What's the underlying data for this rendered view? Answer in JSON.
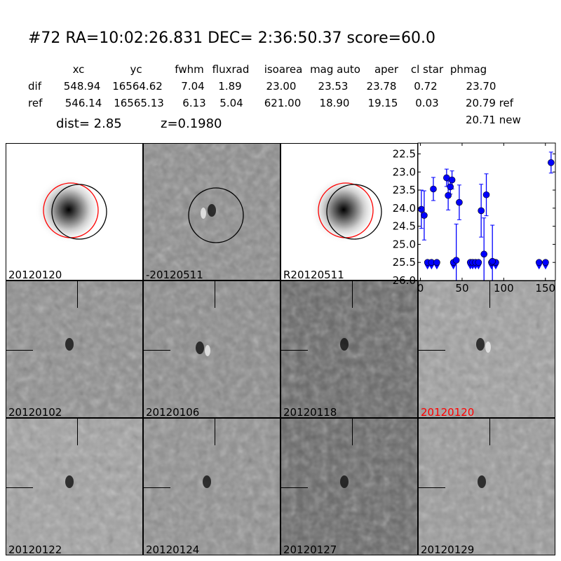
{
  "header": {
    "title": "#72   RA=10:02:26.831 DEC= 2:36:50.37      score=60.0",
    "columns": [
      "xc",
      "yc",
      "fwhm",
      "fluxrad",
      "isoarea",
      "mag auto",
      "aper",
      "cl star",
      "phmag"
    ],
    "rows": [
      {
        "label": "dif",
        "values": [
          "548.94",
          "16564.62",
          "7.04",
          "1.89",
          "23.00",
          "23.53",
          "23.78",
          "0.72",
          "23.70"
        ]
      },
      {
        "label": "ref",
        "values": [
          "546.14",
          "16565.13",
          "6.13",
          "5.04",
          "621.00",
          "18.90",
          "19.15",
          "0.03",
          "20.79 ref"
        ]
      }
    ],
    "extra_phmag": "20.71 new",
    "dist": "dist=  2.85",
    "z": "z=0.1980"
  },
  "panels": [
    {
      "label": "20120120",
      "label_color": "#000000",
      "bg": "#ffffff",
      "type": "galaxy"
    },
    {
      "label": "-20120511",
      "label_color": "#000000",
      "bg": "#8c8c8c",
      "type": "diff"
    },
    {
      "label": "R20120511",
      "label_color": "#000000",
      "bg": "#ffffff",
      "type": "galaxy"
    },
    {
      "label": "20120102",
      "label_color": "#000000",
      "bg": "#8e8e8e",
      "type": "epoch"
    },
    {
      "label": "20120106",
      "label_color": "#000000",
      "bg": "#8a8a8a",
      "type": "epoch"
    },
    {
      "label": "20120118",
      "label_color": "#000000",
      "bg": "#666666",
      "type": "epoch"
    },
    {
      "label": "20120120",
      "label_color": "#ff0000",
      "bg": "#a0a0a0",
      "type": "epoch"
    },
    {
      "label": "20120122",
      "label_color": "#000000",
      "bg": "#a2a2a2",
      "type": "epoch"
    },
    {
      "label": "20120124",
      "label_color": "#000000",
      "bg": "#909090",
      "type": "epoch"
    },
    {
      "label": "20120127",
      "label_color": "#000000",
      "bg": "#666666",
      "type": "epoch"
    },
    {
      "label": "20120129",
      "label_color": "#000000",
      "bg": "#9a9a9a",
      "type": "epoch"
    }
  ],
  "colors": {
    "circle_ref": "#ff0000",
    "circle_dif": "#000000",
    "points": "#0000ff"
  },
  "chart_data": {
    "type": "scatter",
    "xlim": [
      -3,
      162
    ],
    "ylim": [
      26.0,
      22.2
    ],
    "y_inverted": true,
    "xticks": [
      "0",
      "50",
      "100",
      "150"
    ],
    "yticks": [
      "22.5",
      "23.0",
      "23.5",
      "24.0",
      "24.5",
      "25.0",
      "25.5",
      "26.0"
    ],
    "detections": [
      {
        "x": 1.1,
        "y": 24.03,
        "err": 0.53
      },
      {
        "x": 4.5,
        "y": 24.2,
        "err": 0.68
      },
      {
        "x": 15.5,
        "y": 23.47,
        "err": 0.32
      },
      {
        "x": 31.4,
        "y": 23.16,
        "err": 0.24
      },
      {
        "x": 33.3,
        "y": 23.65,
        "err": 0.4
      },
      {
        "x": 35.9,
        "y": 23.41,
        "err": 0.2
      },
      {
        "x": 37.9,
        "y": 23.22,
        "err": 0.25
      },
      {
        "x": 43.0,
        "y": 25.44,
        "err": 1.0
      },
      {
        "x": 46.6,
        "y": 23.84,
        "err": 0.48
      },
      {
        "x": 72.9,
        "y": 24.07,
        "err": 0.73
      },
      {
        "x": 76.3,
        "y": 25.27,
        "err": 1.0
      },
      {
        "x": 79.1,
        "y": 23.63,
        "err": 0.58
      },
      {
        "x": 86.4,
        "y": 25.47,
        "err": 1.0
      },
      {
        "x": 156.8,
        "y": 22.74,
        "err": 0.29
      }
    ],
    "upper_limits": {
      "y": 25.5,
      "x": [
        8.5,
        13.3,
        19.7,
        39.6,
        59.9,
        62.7,
        66.1,
        69.7,
        85.3,
        90.4,
        142.4,
        150.2
      ]
    }
  }
}
